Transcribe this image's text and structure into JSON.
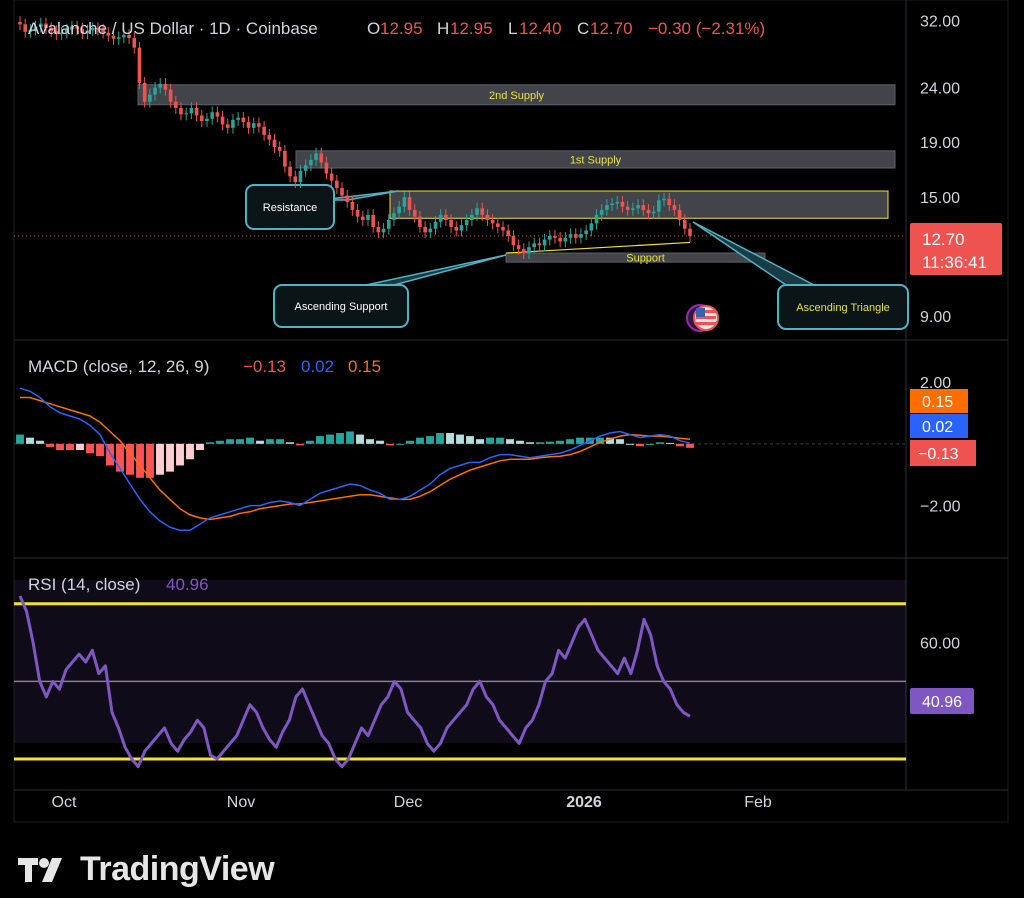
{
  "brand": {
    "name": "TradingView",
    "logo_icon": "tradingview-logo-icon"
  },
  "colors": {
    "background": "#000000",
    "up": "#26a69a",
    "down": "#ef5350",
    "macd_line": "#2962ff",
    "signal_line": "#ff6d00",
    "rsi_line": "#7e57c2",
    "band_line": "#f5e132",
    "zone_fill": "#787b86",
    "callout_border": "#4fb3c4"
  },
  "legend": {
    "symbol": "Avalanche / US Dollar · 1D · Coinbase",
    "o_label": "O",
    "o_value": "12.95",
    "h_label": "H",
    "h_value": "12.95",
    "l_label": "L",
    "l_value": "12.40",
    "c_label": "C",
    "c_value": "12.70",
    "change": "−0.30 (−2.31%)"
  },
  "macd_legend": {
    "title": "MACD (close, 12, 26, 9)",
    "hist": "−0.13",
    "macd": "0.02",
    "signal": "0.15"
  },
  "rsi_legend": {
    "title": "RSI (14, close)",
    "value": "40.96"
  },
  "price_badge": {
    "price": "12.70",
    "countdown": "11:36:41"
  },
  "chart_data": [
    {
      "type": "candlestick",
      "title": "Avalanche / US Dollar · 1D · Coinbase",
      "x_ticks": [
        "Oct",
        "Nov",
        "Dec",
        "2026",
        "Feb"
      ],
      "y_ticks": [
        "32.00",
        "24.00",
        "19.00",
        "15.00",
        "9.00"
      ],
      "y_scale": "log",
      "ylim": [
        8.3,
        33.5
      ],
      "current_price": 12.7,
      "zones": [
        {
          "label": "2nd Supply",
          "low": 22.3,
          "high": 24.3
        },
        {
          "label": "1st Supply",
          "low": 17.0,
          "high": 18.3
        },
        {
          "label": "",
          "low": 13.7,
          "high": 15.4
        },
        {
          "label": "Support",
          "low": 11.35,
          "high": 11.8
        }
      ],
      "annotations": [
        "Resistance",
        "Ascending Support",
        "Ascending Triangle"
      ],
      "close_series": [
        31.5,
        30.5,
        30.8,
        31.2,
        31.6,
        31.0,
        30.6,
        30.2,
        30.4,
        30.8,
        31.2,
        30.9,
        30.3,
        30.7,
        31.0,
        30.8,
        30.4,
        30.0,
        29.6,
        29.8,
        30.1,
        29.7,
        28.5,
        24.5,
        22.6,
        23.3,
        24.0,
        24.4,
        23.8,
        22.6,
        22.0,
        21.4,
        21.5,
        22.0,
        21.3,
        20.8,
        21.0,
        21.6,
        21.2,
        20.5,
        20.2,
        20.9,
        21.1,
        20.7,
        20.2,
        20.6,
        20.3,
        19.6,
        19.2,
        18.6,
        18.3,
        17.1,
        16.4,
        16.0,
        16.8,
        17.2,
        17.6,
        18.1,
        17.4,
        16.6,
        16.1,
        15.6,
        15.1,
        14.7,
        14.2,
        13.8,
        13.6,
        13.9,
        13.2,
        12.9,
        13.1,
        13.6,
        14.0,
        14.4,
        15.0,
        14.2,
        13.8,
        13.2,
        12.9,
        13.1,
        13.5,
        13.9,
        13.6,
        13.2,
        13.0,
        13.3,
        13.6,
        13.9,
        14.3,
        13.9,
        13.6,
        13.4,
        13.2,
        13.0,
        12.7,
        12.2,
        12.0,
        11.8,
        12.1,
        12.3,
        12.2,
        12.5,
        12.7,
        12.6,
        12.4,
        12.6,
        12.8,
        12.6,
        12.8,
        13.0,
        13.4,
        13.9,
        14.2,
        14.5,
        14.6,
        14.7,
        14.4,
        14.2,
        14.3,
        14.5,
        14.2,
        14.0,
        14.1,
        14.8,
        14.9,
        14.5,
        14.2,
        13.6,
        13.1,
        12.7
      ]
    },
    {
      "type": "line",
      "title": "MACD (close, 12, 26, 9)",
      "y_ticks": [
        "2.00",
        "−2.00"
      ],
      "ylim": [
        -3.6,
        3.2
      ],
      "values_last": {
        "macd": 0.02,
        "signal": 0.15,
        "histogram": -0.13
      },
      "macd_series": [
        1.8,
        1.7,
        1.5,
        1.2,
        1.0,
        0.9,
        0.8,
        0.6,
        0.3,
        -0.3,
        -0.8,
        -1.3,
        -1.8,
        -2.2,
        -2.5,
        -2.7,
        -2.8,
        -2.8,
        -2.6,
        -2.4,
        -2.3,
        -2.2,
        -2.1,
        -2.0,
        -2.0,
        -1.9,
        -1.85,
        -1.9,
        -2.0,
        -1.8,
        -1.6,
        -1.5,
        -1.4,
        -1.3,
        -1.35,
        -1.5,
        -1.6,
        -1.8,
        -1.8,
        -1.7,
        -1.5,
        -1.3,
        -1.0,
        -0.8,
        -0.7,
        -0.6,
        -0.6,
        -0.45,
        -0.35,
        -0.35,
        -0.4,
        -0.45,
        -0.4,
        -0.35,
        -0.3,
        -0.2,
        -0.05,
        0.1,
        0.25,
        0.35,
        0.4,
        0.3,
        0.2,
        0.25,
        0.3,
        0.25,
        0.1,
        0.02
      ],
      "signal_series": [
        1.5,
        1.5,
        1.4,
        1.3,
        1.2,
        1.1,
        1.0,
        0.9,
        0.7,
        0.4,
        0.1,
        -0.3,
        -0.7,
        -1.1,
        -1.5,
        -1.8,
        -2.1,
        -2.3,
        -2.4,
        -2.45,
        -2.4,
        -2.35,
        -2.25,
        -2.2,
        -2.1,
        -2.05,
        -2.0,
        -1.95,
        -1.95,
        -1.9,
        -1.85,
        -1.8,
        -1.75,
        -1.7,
        -1.65,
        -1.65,
        -1.7,
        -1.75,
        -1.8,
        -1.8,
        -1.7,
        -1.55,
        -1.35,
        -1.15,
        -1.0,
        -0.85,
        -0.75,
        -0.65,
        -0.55,
        -0.5,
        -0.5,
        -0.5,
        -0.45,
        -0.42,
        -0.4,
        -0.35,
        -0.25,
        -0.1,
        0.05,
        0.15,
        0.25,
        0.3,
        0.28,
        0.25,
        0.25,
        0.22,
        0.18,
        0.15
      ]
    },
    {
      "type": "line",
      "title": "RSI (14, close)",
      "y_ticks": [
        "60.00"
      ],
      "ylim": [
        22,
        80
      ],
      "value_last": 40.96,
      "bands": [
        70,
        50,
        30
      ],
      "rsi_series": [
        72,
        68,
        60,
        50,
        46,
        50,
        48,
        53,
        55,
        57,
        55,
        58,
        52,
        54,
        42,
        38,
        33,
        30,
        28,
        32,
        34,
        36,
        38,
        34,
        32,
        35,
        37,
        40,
        38,
        31,
        30,
        32,
        34,
        36,
        40,
        44,
        42,
        38,
        35,
        33,
        37,
        40,
        46,
        48,
        44,
        40,
        36,
        34,
        30,
        28,
        30,
        34,
        38,
        36,
        40,
        44,
        46,
        50,
        48,
        42,
        40,
        38,
        34,
        32,
        34,
        38,
        40,
        42,
        44,
        48,
        50,
        46,
        44,
        40,
        38,
        36,
        34,
        38,
        40,
        44,
        50,
        52,
        58,
        56,
        60,
        64,
        66,
        62,
        58,
        56,
        54,
        52,
        56,
        52,
        58,
        66,
        62,
        54,
        50,
        48,
        44,
        42,
        41
      ]
    }
  ]
}
